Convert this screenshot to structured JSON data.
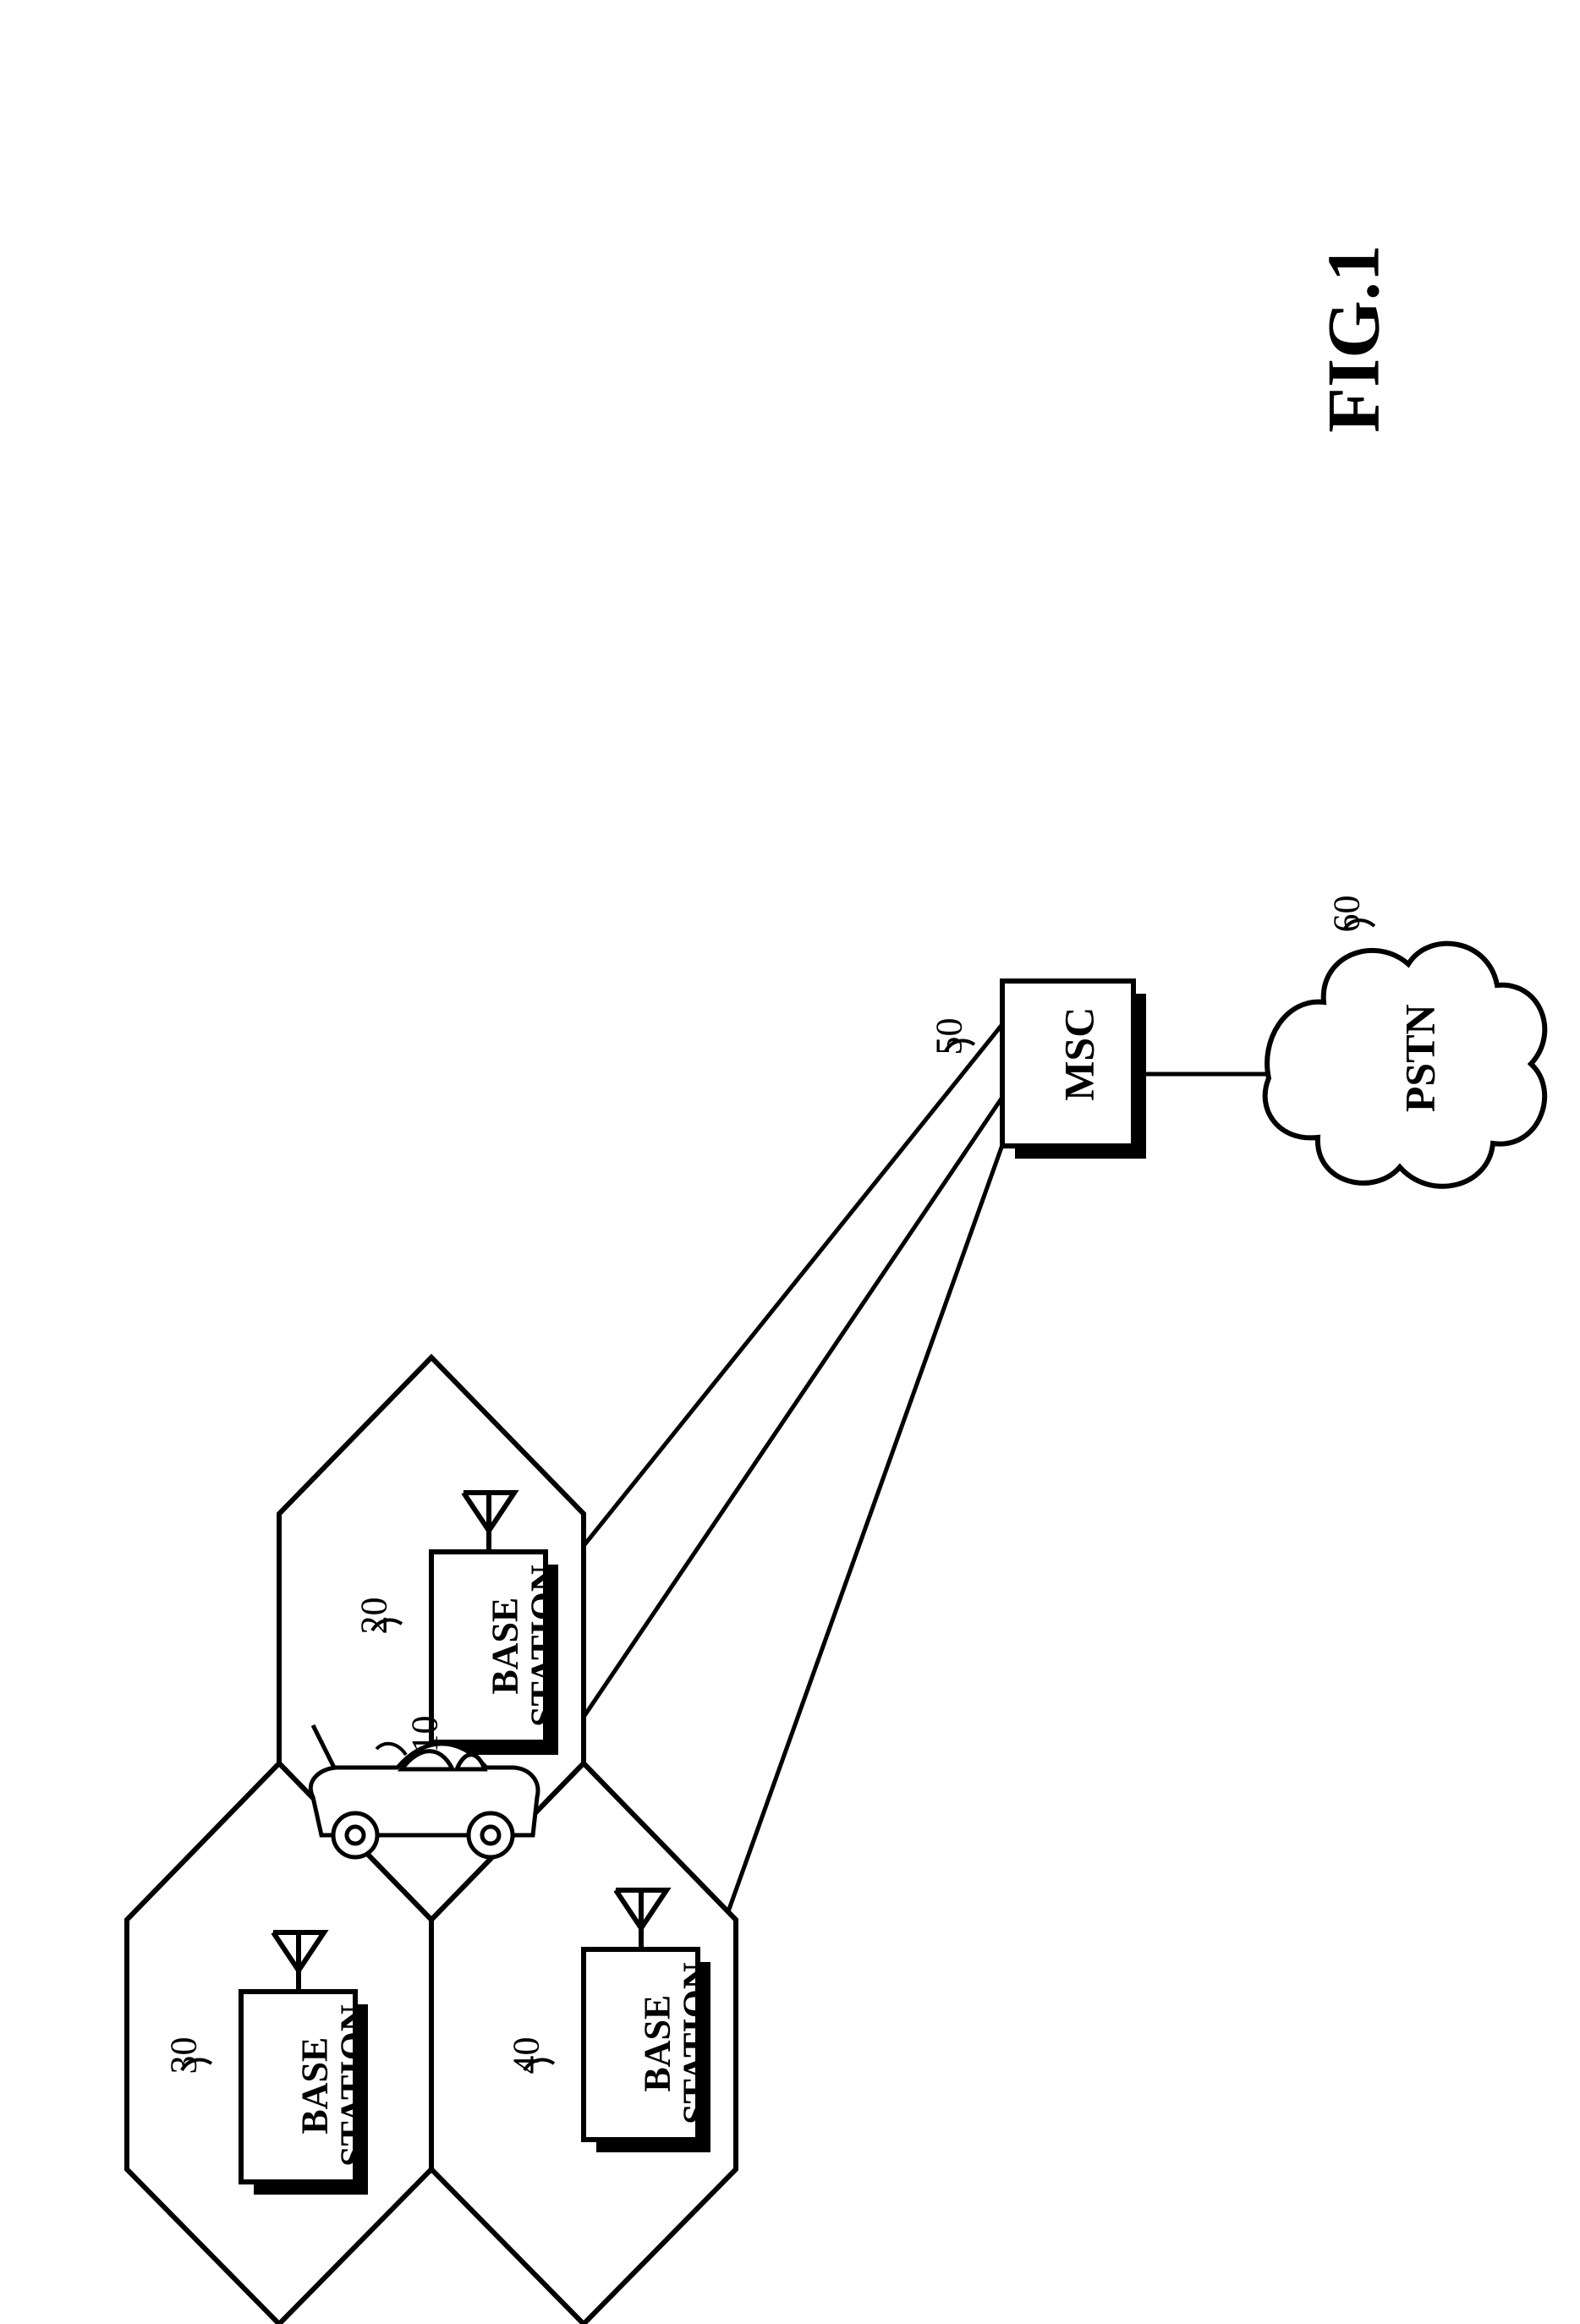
{
  "figure": {
    "title": "FIG.1",
    "title_fontsize": 88,
    "node_fontsize": 44,
    "ref_fontsize": 44,
    "colors": {
      "stroke": "#000000",
      "background": "#ffffff",
      "shadow": "#000000"
    },
    "stroke_width_hex": 6,
    "stroke_width_box": 6,
    "stroke_width_line": 5,
    "nodes": {
      "bs20": {
        "label": "BASE\nSTATION",
        "ref": "20"
      },
      "bs30": {
        "label": "BASE\nSTATION",
        "ref": "30"
      },
      "bs40": {
        "label": "BASE\nSTATION",
        "ref": "40"
      },
      "msc": {
        "label": "MSC",
        "ref": "50"
      },
      "pstn": {
        "label": "PSTN",
        "ref": "60"
      },
      "car": {
        "ref": "10"
      }
    }
  }
}
